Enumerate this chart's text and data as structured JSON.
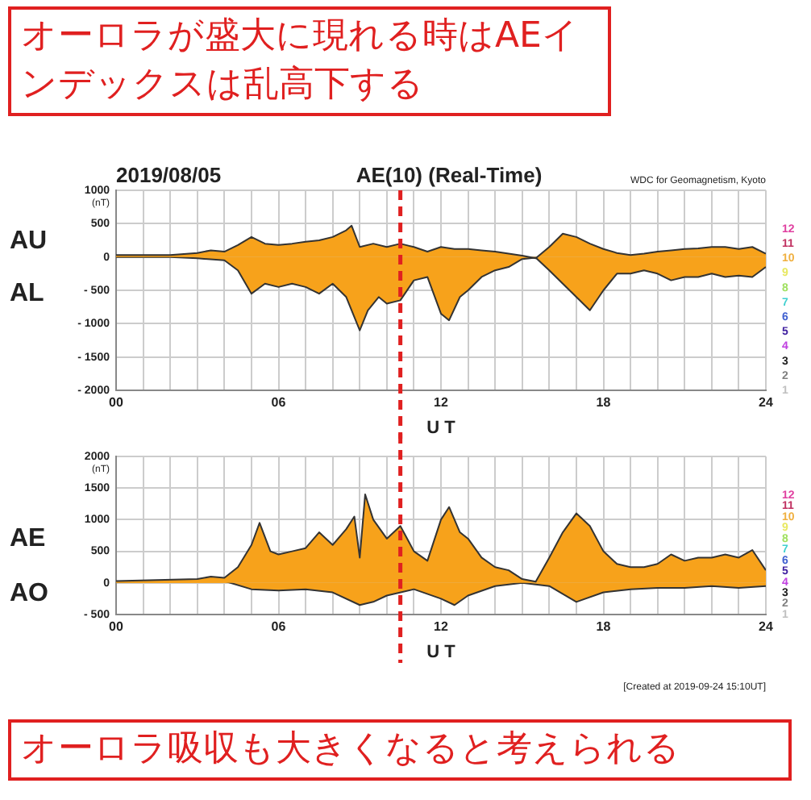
{
  "chart_data": [
    {
      "type": "area",
      "title": "AE(10) (Real-Time)",
      "subtitle": "2019/08/05",
      "xlabel": "U T",
      "ylabel": "(nT)",
      "annotations": [
        "オーロラが盛大に現れる時はAEインデックスは乱高下する",
        "WDC for Geomagnetism, Kyoto",
        "12",
        "11",
        "10",
        "9",
        "8",
        "7",
        "6",
        "5",
        "4",
        "3",
        "2",
        "1"
      ],
      "series": [
        {
          "name": "AU",
          "color": "#f7a21b",
          "x": [
            0,
            1,
            2,
            3,
            3.5,
            4,
            4.5,
            5,
            5.5,
            6,
            6.5,
            7,
            7.5,
            8,
            8.5,
            8.7,
            9,
            9.5,
            10,
            10.5,
            11,
            11.5,
            12,
            12.5,
            13,
            13.5,
            14,
            14.5,
            15,
            15.5,
            16,
            16.5,
            17,
            17.5,
            18,
            18.5,
            19,
            19.5,
            20,
            20.5,
            21,
            21.5,
            22,
            22.5,
            23,
            23.5,
            24
          ],
          "values": [
            30,
            30,
            30,
            60,
            100,
            80,
            180,
            300,
            200,
            180,
            200,
            230,
            250,
            300,
            400,
            470,
            150,
            200,
            150,
            200,
            150,
            80,
            150,
            120,
            120,
            100,
            80,
            50,
            20,
            -20,
            150,
            350,
            300,
            200,
            120,
            60,
            30,
            50,
            80,
            100,
            120,
            130,
            150,
            150,
            120,
            150,
            50
          ]
        },
        {
          "name": "AL",
          "color": "#f7a21b",
          "x": [
            0,
            1,
            2,
            3,
            4,
            4.5,
            5,
            5.5,
            6,
            6.5,
            7,
            7.5,
            8,
            8.5,
            9,
            9.3,
            9.7,
            10,
            10.5,
            11,
            11.5,
            12,
            12.3,
            12.7,
            13,
            13.5,
            14,
            14.5,
            15,
            15.5,
            16,
            16.5,
            17,
            17.5,
            18,
            18.5,
            19,
            19.5,
            20,
            20.5,
            21,
            21.5,
            22,
            22.5,
            23,
            23.5,
            24
          ],
          "values": [
            0,
            0,
            0,
            -20,
            -50,
            -200,
            -550,
            -400,
            -450,
            -400,
            -450,
            -550,
            -400,
            -600,
            -1100,
            -800,
            -600,
            -700,
            -650,
            -350,
            -300,
            -850,
            -950,
            -600,
            -500,
            -300,
            -200,
            -150,
            -30,
            -10,
            -200,
            -400,
            -600,
            -800,
            -500,
            -250,
            -250,
            -200,
            -250,
            -350,
            -300,
            -300,
            -250,
            -300,
            -280,
            -300,
            -150
          ]
        }
      ],
      "ref_lines": [
        {
          "axis": "x",
          "value": 10.5,
          "color": "#e02020",
          "line_style": "dashed"
        }
      ],
      "xlim": [
        0,
        24
      ],
      "xticks": [
        {
          "value": 0,
          "label": "00"
        },
        {
          "value": 1,
          "label": null
        },
        {
          "value": 2,
          "label": null
        },
        {
          "value": 3,
          "label": null
        },
        {
          "value": 4,
          "label": null
        },
        {
          "value": 5,
          "label": null
        },
        {
          "value": 6,
          "label": "06"
        },
        {
          "value": 7,
          "label": null
        },
        {
          "value": 8,
          "label": null
        },
        {
          "value": 9,
          "label": null
        },
        {
          "value": 10,
          "label": null
        },
        {
          "value": 11,
          "label": null
        },
        {
          "value": 12,
          "label": "12"
        },
        {
          "value": 13,
          "label": null
        },
        {
          "value": 14,
          "label": null
        },
        {
          "value": 15,
          "label": null
        },
        {
          "value": 16,
          "label": null
        },
        {
          "value": 17,
          "label": null
        },
        {
          "value": 18,
          "label": "18"
        },
        {
          "value": 19,
          "label": null
        },
        {
          "value": 20,
          "label": null
        },
        {
          "value": 21,
          "label": null
        },
        {
          "value": 22,
          "label": null
        },
        {
          "value": 23,
          "label": null
        },
        {
          "value": 24,
          "label": "24"
        }
      ],
      "ylim": [
        -2000,
        1000
      ],
      "yticks": [
        1000,
        500,
        0,
        {
          "value": -500,
          "label": "- 500"
        },
        {
          "value": -1000,
          "label": "- 1000"
        },
        {
          "value": -1500,
          "label": "- 1500"
        },
        {
          "value": -2000,
          "label": "- 2000"
        }
      ],
      "grid": true,
      "legend": false
    },
    {
      "type": "area",
      "xlabel": "U T",
      "ylabel": "(nT)",
      "annotations": [
        "オーロラ吸収も大きくなると考えられる",
        "[Created at 2019-09-24 15:10UT]",
        "12",
        "11",
        "10",
        "9",
        "8",
        "7",
        "6",
        "5",
        "4",
        "3",
        "2",
        "1"
      ],
      "series": [
        {
          "name": "AE",
          "color": "#f7a21b",
          "x": [
            0,
            3,
            3.5,
            4,
            4.5,
            5,
            5.3,
            5.7,
            6,
            6.5,
            7,
            7.5,
            8,
            8.5,
            8.8,
            9,
            9.2,
            9.5,
            10,
            10.5,
            11,
            11.5,
            12,
            12.3,
            12.7,
            13,
            13.5,
            14,
            14.5,
            15,
            15.5,
            16,
            16.5,
            17,
            17.5,
            18,
            18.5,
            19,
            19.5,
            20,
            20.5,
            21,
            21.5,
            22,
            22.5,
            23,
            23.5,
            24
          ],
          "values": [
            30,
            60,
            100,
            80,
            250,
            600,
            950,
            500,
            450,
            500,
            550,
            800,
            600,
            850,
            1050,
            400,
            1400,
            1000,
            700,
            900,
            500,
            350,
            1000,
            1200,
            800,
            700,
            400,
            250,
            200,
            60,
            20,
            400,
            800,
            1100,
            900,
            500,
            300,
            250,
            250,
            300,
            450,
            350,
            400,
            400,
            450,
            400,
            520,
            200
          ]
        },
        {
          "name": "AO",
          "color": "#f7a21b",
          "x": [
            0,
            3,
            4,
            5,
            6,
            7,
            8,
            9,
            9.5,
            10,
            11,
            12,
            12.5,
            13,
            14,
            15,
            16,
            17,
            18,
            19,
            20,
            21,
            22,
            23,
            24
          ],
          "values": [
            15,
            30,
            30,
            -100,
            -120,
            -100,
            -150,
            -350,
            -300,
            -200,
            -100,
            -250,
            -350,
            -200,
            -50,
            0,
            -50,
            -300,
            -150,
            -100,
            -80,
            -80,
            -50,
            -80,
            -50
          ]
        }
      ],
      "ref_lines": [
        {
          "axis": "x",
          "value": 10.5,
          "color": "#e02020",
          "line_style": "dashed"
        }
      ],
      "xlim": [
        0,
        24
      ],
      "xticks": [
        {
          "value": 0,
          "label": "00"
        },
        {
          "value": 1,
          "label": null
        },
        {
          "value": 2,
          "label": null
        },
        {
          "value": 3,
          "label": null
        },
        {
          "value": 4,
          "label": null
        },
        {
          "value": 5,
          "label": null
        },
        {
          "value": 6,
          "label": "06"
        },
        {
          "value": 7,
          "label": null
        },
        {
          "value": 8,
          "label": null
        },
        {
          "value": 9,
          "label": null
        },
        {
          "value": 10,
          "label": null
        },
        {
          "value": 11,
          "label": null
        },
        {
          "value": 12,
          "label": "12"
        },
        {
          "value": 13,
          "label": null
        },
        {
          "value": 14,
          "label": null
        },
        {
          "value": 15,
          "label": null
        },
        {
          "value": 16,
          "label": null
        },
        {
          "value": 17,
          "label": null
        },
        {
          "value": 18,
          "label": "18"
        },
        {
          "value": 19,
          "label": null
        },
        {
          "value": 20,
          "label": null
        },
        {
          "value": 21,
          "label": null
        },
        {
          "value": 22,
          "label": null
        },
        {
          "value": 23,
          "label": null
        },
        {
          "value": 24,
          "label": "24"
        }
      ],
      "ylim": [
        -500,
        2000
      ],
      "yticks": [
        2000,
        1500,
        1000,
        500,
        0,
        {
          "value": -500,
          "label": "- 500"
        }
      ],
      "grid": true,
      "legend": false
    }
  ]
}
